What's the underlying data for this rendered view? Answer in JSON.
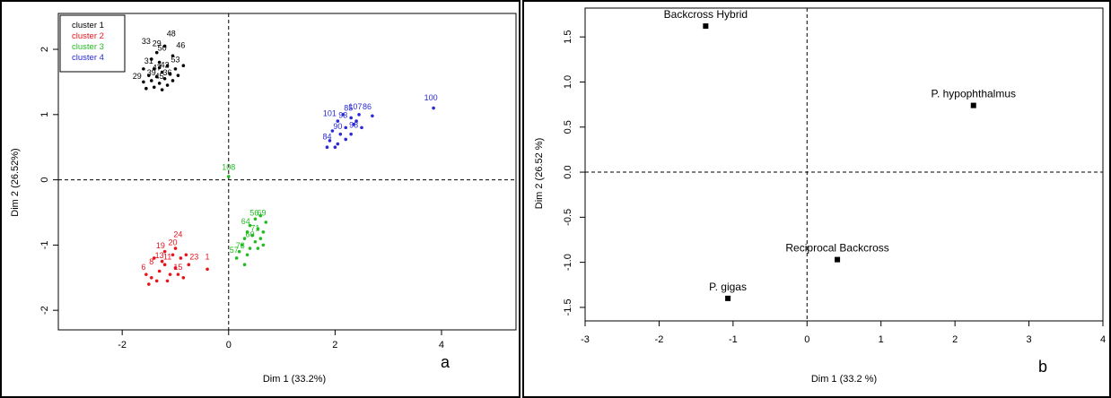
{
  "chart_data": [
    {
      "type": "scatter",
      "panel_label": "a",
      "xlabel": "Dim 1 (33.2%)",
      "ylabel": "Dim 2 (26.52%)",
      "xlim": [
        -3.2,
        5.4
      ],
      "ylim": [
        -2.3,
        2.55
      ],
      "xticks": [
        -2,
        0,
        2,
        4
      ],
      "yticks": [
        -2,
        -1,
        0,
        1,
        2
      ],
      "reference_lines": {
        "x": 0,
        "y": 0,
        "style": "dashed"
      },
      "legend": {
        "position": "top-left",
        "entries": [
          {
            "label": "cluster 1",
            "color": "#000000"
          },
          {
            "label": "cluster 2",
            "color": "#e8141b"
          },
          {
            "label": "cluster 3",
            "color": "#22bb22"
          },
          {
            "label": "cluster 4",
            "color": "#2a2ad6"
          }
        ]
      },
      "series": [
        {
          "name": "cluster 1",
          "color": "#000000",
          "points": [
            [
              -1.35,
              1.95
            ],
            [
              -1.2,
              2.05
            ],
            [
              -1.05,
              1.9
            ],
            [
              -1.3,
              1.8
            ],
            [
              -1.15,
              1.75
            ],
            [
              -1.4,
              1.7
            ],
            [
              -1.0,
              1.7
            ],
            [
              -1.25,
              1.65
            ],
            [
              -1.1,
              1.62
            ],
            [
              -1.5,
              1.6
            ],
            [
              -1.35,
              1.58
            ],
            [
              -0.95,
              1.6
            ],
            [
              -1.2,
              1.55
            ],
            [
              -1.45,
              1.52
            ],
            [
              -1.05,
              1.52
            ],
            [
              -1.6,
              1.5
            ],
            [
              -1.3,
              1.48
            ],
            [
              -1.15,
              1.45
            ],
            [
              -1.4,
              1.42
            ],
            [
              -1.55,
              1.4
            ],
            [
              -1.25,
              1.38
            ],
            [
              -1.6,
              1.7
            ],
            [
              -1.45,
              1.85
            ],
            [
              -0.85,
              1.75
            ],
            [
              -1.3,
              1.72
            ]
          ],
          "labels": [
            {
              "text": "33",
              "x": -1.55,
              "y": 2.08
            },
            {
              "text": "48",
              "x": -1.08,
              "y": 2.2
            },
            {
              "text": "46",
              "x": -0.9,
              "y": 2.02
            },
            {
              "text": "29",
              "x": -1.35,
              "y": 2.05
            },
            {
              "text": "50",
              "x": -1.25,
              "y": 1.98
            },
            {
              "text": "53",
              "x": -1.0,
              "y": 1.8
            },
            {
              "text": "29",
              "x": -1.72,
              "y": 1.55
            },
            {
              "text": "31",
              "x": -1.5,
              "y": 1.78
            },
            {
              "text": "47",
              "x": -1.35,
              "y": 1.68
            },
            {
              "text": "42",
              "x": -1.2,
              "y": 1.72
            },
            {
              "text": "39",
              "x": -1.45,
              "y": 1.6
            },
            {
              "text": "36",
              "x": -1.15,
              "y": 1.6
            },
            {
              "text": "45",
              "x": -1.3,
              "y": 1.55
            }
          ]
        },
        {
          "name": "cluster 2",
          "color": "#e8141b",
          "points": [
            [
              -0.4,
              -1.37
            ],
            [
              -0.75,
              -1.3
            ],
            [
              -0.9,
              -1.2
            ],
            [
              -1.05,
              -1.15
            ],
            [
              -1.2,
              -1.3
            ],
            [
              -1.0,
              -1.35
            ],
            [
              -1.3,
              -1.4
            ],
            [
              -1.45,
              -1.5
            ],
            [
              -1.5,
              -1.6
            ],
            [
              -1.1,
              -1.45
            ],
            [
              -0.95,
              -1.45
            ],
            [
              -1.25,
              -1.25
            ],
            [
              -0.85,
              -1.5
            ],
            [
              -1.35,
              -1.55
            ],
            [
              -1.15,
              -1.55
            ],
            [
              -1.4,
              -1.2
            ],
            [
              -1.2,
              -1.1
            ],
            [
              -1.0,
              -1.05
            ],
            [
              -0.8,
              -1.15
            ],
            [
              -1.55,
              -1.45
            ]
          ],
          "labels": [
            {
              "text": "24",
              "x": -0.95,
              "y": -0.88
            },
            {
              "text": "20",
              "x": -1.05,
              "y": -1.0
            },
            {
              "text": "19",
              "x": -1.28,
              "y": -1.05
            },
            {
              "text": "1",
              "x": -0.4,
              "y": -1.22
            },
            {
              "text": "23",
              "x": -0.65,
              "y": -1.22
            },
            {
              "text": "13",
              "x": -1.3,
              "y": -1.2
            },
            {
              "text": "6",
              "x": -1.6,
              "y": -1.38
            },
            {
              "text": "11",
              "x": -1.15,
              "y": -1.22
            },
            {
              "text": "15",
              "x": -0.95,
              "y": -1.38
            },
            {
              "text": "8",
              "x": -1.45,
              "y": -1.3
            }
          ]
        },
        {
          "name": "cluster 3",
          "color": "#22bb22",
          "points": [
            [
              0.0,
              0.05
            ],
            [
              0.5,
              -0.6
            ],
            [
              0.6,
              -0.55
            ],
            [
              0.7,
              -0.65
            ],
            [
              0.4,
              -0.7
            ],
            [
              0.55,
              -0.75
            ],
            [
              0.35,
              -0.8
            ],
            [
              0.65,
              -0.8
            ],
            [
              0.45,
              -0.85
            ],
            [
              0.6,
              -0.9
            ],
            [
              0.3,
              -0.9
            ],
            [
              0.5,
              -0.95
            ],
            [
              0.25,
              -1.0
            ],
            [
              0.4,
              -1.05
            ],
            [
              0.65,
              -1.0
            ],
            [
              0.2,
              -1.1
            ],
            [
              0.35,
              -1.15
            ],
            [
              0.15,
              -1.2
            ],
            [
              0.3,
              -1.3
            ],
            [
              0.55,
              -1.05
            ]
          ],
          "labels": [
            {
              "text": "108",
              "x": 0.0,
              "y": 0.15
            },
            {
              "text": "56",
              "x": 0.48,
              "y": -0.55
            },
            {
              "text": "69",
              "x": 0.62,
              "y": -0.55
            },
            {
              "text": "64",
              "x": 0.32,
              "y": -0.68
            },
            {
              "text": "71",
              "x": 0.5,
              "y": -0.78
            },
            {
              "text": "60",
              "x": 0.4,
              "y": -0.88
            },
            {
              "text": "73",
              "x": 0.22,
              "y": -1.05
            },
            {
              "text": "57",
              "x": 0.1,
              "y": -1.12
            }
          ]
        },
        {
          "name": "cluster 4",
          "color": "#2a2ad6",
          "points": [
            [
              3.85,
              1.1
            ],
            [
              2.7,
              0.98
            ],
            [
              2.45,
              1.0
            ],
            [
              2.3,
              0.95
            ],
            [
              2.15,
              1.0
            ],
            [
              2.35,
              0.85
            ],
            [
              2.05,
              0.9
            ],
            [
              2.2,
              0.8
            ],
            [
              2.5,
              0.8
            ],
            [
              1.95,
              0.75
            ],
            [
              2.1,
              0.7
            ],
            [
              2.3,
              0.7
            ],
            [
              1.9,
              0.6
            ],
            [
              2.05,
              0.55
            ],
            [
              2.0,
              0.5
            ],
            [
              1.85,
              0.5
            ],
            [
              2.2,
              0.62
            ],
            [
              2.4,
              0.9
            ]
          ],
          "labels": [
            {
              "text": "100",
              "x": 3.8,
              "y": 1.22
            },
            {
              "text": "86",
              "x": 2.6,
              "y": 1.08
            },
            {
              "text": "107",
              "x": 2.38,
              "y": 1.08
            },
            {
              "text": "85",
              "x": 2.25,
              "y": 1.06
            },
            {
              "text": "101",
              "x": 1.9,
              "y": 0.98
            },
            {
              "text": "93",
              "x": 2.15,
              "y": 0.95
            },
            {
              "text": "98",
              "x": 2.35,
              "y": 0.8
            },
            {
              "text": "84",
              "x": 1.85,
              "y": 0.62
            },
            {
              "text": "90",
              "x": 2.05,
              "y": 0.78
            }
          ]
        }
      ]
    },
    {
      "type": "scatter",
      "panel_label": "b",
      "xlabel": "Dim 1 (33.2 %)",
      "ylabel": "Dim 2 (26.52 %)",
      "xlim": [
        -3,
        4
      ],
      "ylim": [
        -1.65,
        1.82
      ],
      "xticks": [
        -3,
        -2,
        -1,
        0,
        1,
        2,
        3,
        4
      ],
      "yticks": [
        -1.5,
        -1.0,
        -0.5,
        0.0,
        0.5,
        1.0,
        1.5
      ],
      "ytick_labels": [
        "-1.5",
        "-1.0",
        "-0.5",
        "0.0",
        "0.5",
        "1.0",
        "1.5"
      ],
      "reference_lines": {
        "x": 0,
        "y": 0,
        "style": "dashed"
      },
      "points": [
        {
          "label": "Backcross Hybrid",
          "x": -1.37,
          "y": 1.62
        },
        {
          "label": "P. hypophthalmus",
          "x": 2.25,
          "y": 0.74
        },
        {
          "label": "Reciprocal Backcross",
          "x": 0.41,
          "y": -0.97
        },
        {
          "label": "P. gigas",
          "x": -1.07,
          "y": -1.4
        }
      ]
    }
  ]
}
